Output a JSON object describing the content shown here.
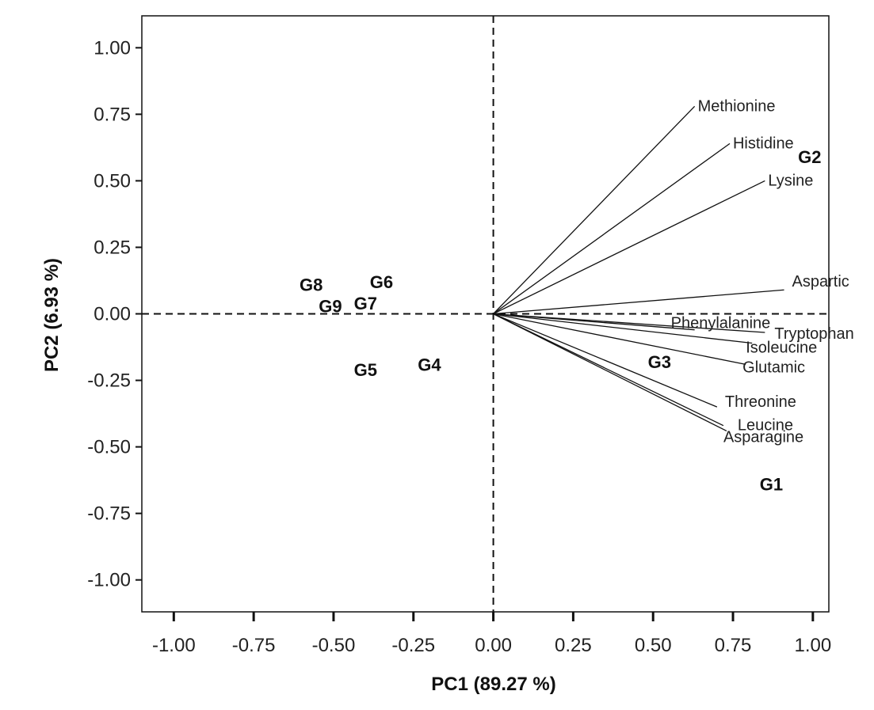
{
  "chart_data": {
    "type": "scatter",
    "title": "",
    "xlabel": "PC1 (89.27 %)",
    "ylabel": "PC2 (6.93 %)",
    "xlim": [
      -1.1,
      1.05
    ],
    "ylim": [
      -1.12,
      1.12
    ],
    "xticks": [
      -1.0,
      -0.75,
      -0.5,
      -0.25,
      0.0,
      0.25,
      0.5,
      0.75,
      1.0
    ],
    "xtick_labels": [
      "-1.00",
      "-0.75",
      "-0.50",
      "-0.25",
      "0.00",
      "0.25",
      "0.50",
      "0.75",
      "1.00"
    ],
    "yticks": [
      1.0,
      0.75,
      0.5,
      0.25,
      0.0,
      -0.25,
      -0.5,
      -0.75,
      -1.0
    ],
    "ytick_labels": [
      "1.00",
      "0.75",
      "0.50",
      "0.25",
      "0.00",
      "-0.25",
      "-0.50",
      "-0.75",
      "-1.00"
    ],
    "reference_lines": {
      "x": 0,
      "y": 0,
      "style": "dashed"
    },
    "vectors": [
      {
        "name": "Methionine",
        "x": 0.63,
        "y": 0.78
      },
      {
        "name": "Histidine",
        "x": 0.74,
        "y": 0.64
      },
      {
        "name": "Lysine",
        "x": 0.85,
        "y": 0.5
      },
      {
        "name": "Aspartic",
        "x": 0.91,
        "y": 0.09
      },
      {
        "name": "Phenylalanine",
        "x": 0.63,
        "y": -0.06
      },
      {
        "name": "Tryptophan",
        "x": 0.85,
        "y": -0.07
      },
      {
        "name": "Isoleucine",
        "x": 0.81,
        "y": -0.11
      },
      {
        "name": "Glutamic",
        "x": 0.79,
        "y": -0.19
      },
      {
        "name": "Threonine",
        "x": 0.7,
        "y": -0.35
      },
      {
        "name": "Leucine",
        "x": 0.72,
        "y": -0.42
      },
      {
        "name": "Asparagine",
        "x": 0.73,
        "y": -0.44
      }
    ],
    "groups": [
      {
        "name": "G1",
        "x": 0.87,
        "y": -0.64
      },
      {
        "name": "G2",
        "x": 0.99,
        "y": 0.59
      },
      {
        "name": "G3",
        "x": 0.52,
        "y": -0.18
      },
      {
        "name": "G4",
        "x": -0.2,
        "y": -0.19
      },
      {
        "name": "G5",
        "x": -0.4,
        "y": -0.21
      },
      {
        "name": "G6",
        "x": -0.35,
        "y": 0.12
      },
      {
        "name": "G7",
        "x": -0.4,
        "y": 0.04
      },
      {
        "name": "G8",
        "x": -0.57,
        "y": 0.11
      },
      {
        "name": "G9",
        "x": -0.51,
        "y": 0.03
      }
    ]
  }
}
